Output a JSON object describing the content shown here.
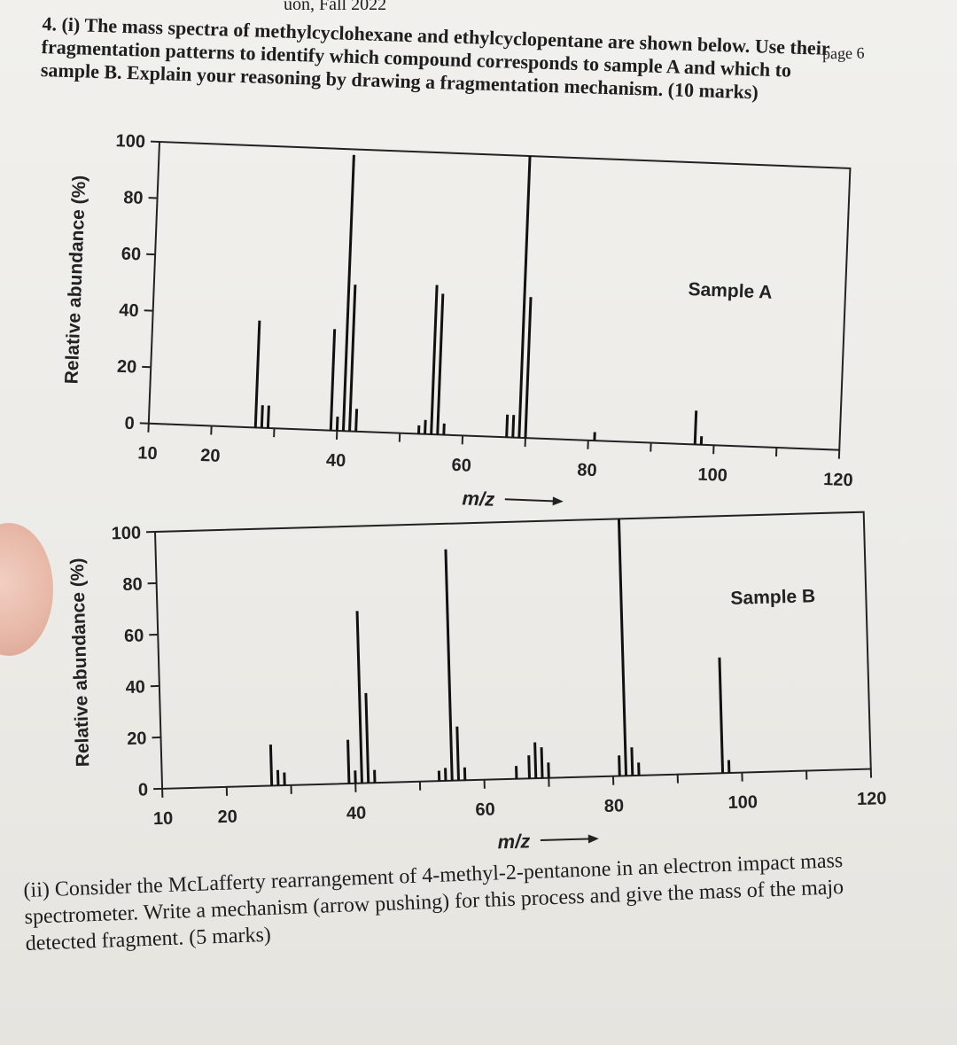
{
  "header": {
    "course_fragment": "uon, Fall 2022",
    "page_label": "page 6"
  },
  "question": {
    "part1_lines": [
      "4. (i) The mass spectra of methylcyclohexane and ethylcyclopentane are shown below. Use their",
      "fragmentation patterns to identify which compound corresponds to sample A and which to",
      "sample B. Explain your reasoning by drawing a fragmentation mechanism. (10 marks)"
    ],
    "part2_lines": [
      "(ii) Consider the McLafferty rearrangement of 4-methyl-2-pentanone in an electron impact mass",
      "spectrometer. Write a mechanism (arrow pushing) for this process and give the mass of the majo",
      "detected fragment. (5 marks)"
    ]
  },
  "chart_data": [
    {
      "type": "bar",
      "title": "Sample A",
      "xlabel": "m/z",
      "ylabel": "Relative abundance (%)",
      "xlim": [
        10,
        120
      ],
      "ylim": [
        0,
        100
      ],
      "x_ticks": [
        10,
        20,
        40,
        60,
        80,
        100,
        120
      ],
      "y_ticks": [
        0,
        20,
        40,
        60,
        80,
        100
      ],
      "series": [
        {
          "x": [
            27,
            28,
            29,
            39,
            40,
            41,
            42,
            43,
            53,
            54,
            55,
            56,
            57,
            67,
            68,
            69,
            70,
            81,
            97,
            98
          ],
          "values": [
            38,
            8,
            8,
            36,
            5,
            98,
            52,
            8,
            3,
            5,
            53,
            50,
            4,
            8,
            8,
            100,
            50,
            3,
            12,
            3
          ]
        }
      ]
    },
    {
      "type": "bar",
      "title": "Sample B",
      "xlabel": "m/z",
      "ylabel": "Relative abundance (%)",
      "xlim": [
        10,
        120
      ],
      "ylim": [
        0,
        100
      ],
      "x_ticks": [
        10,
        20,
        40,
        60,
        80,
        100,
        120
      ],
      "y_ticks": [
        0,
        20,
        40,
        60,
        80,
        100
      ],
      "series": [
        {
          "x": [
            27,
            28,
            29,
            39,
            40,
            41,
            42,
            43,
            53,
            54,
            55,
            56,
            57,
            65,
            67,
            68,
            69,
            70,
            81,
            82,
            83,
            84,
            97,
            98
          ],
          "values": [
            16,
            6,
            5,
            17,
            5,
            67,
            35,
            5,
            4,
            5,
            90,
            21,
            5,
            5,
            9,
            14,
            12,
            6,
            8,
            100,
            11,
            5,
            45,
            5
          ]
        }
      ]
    }
  ]
}
